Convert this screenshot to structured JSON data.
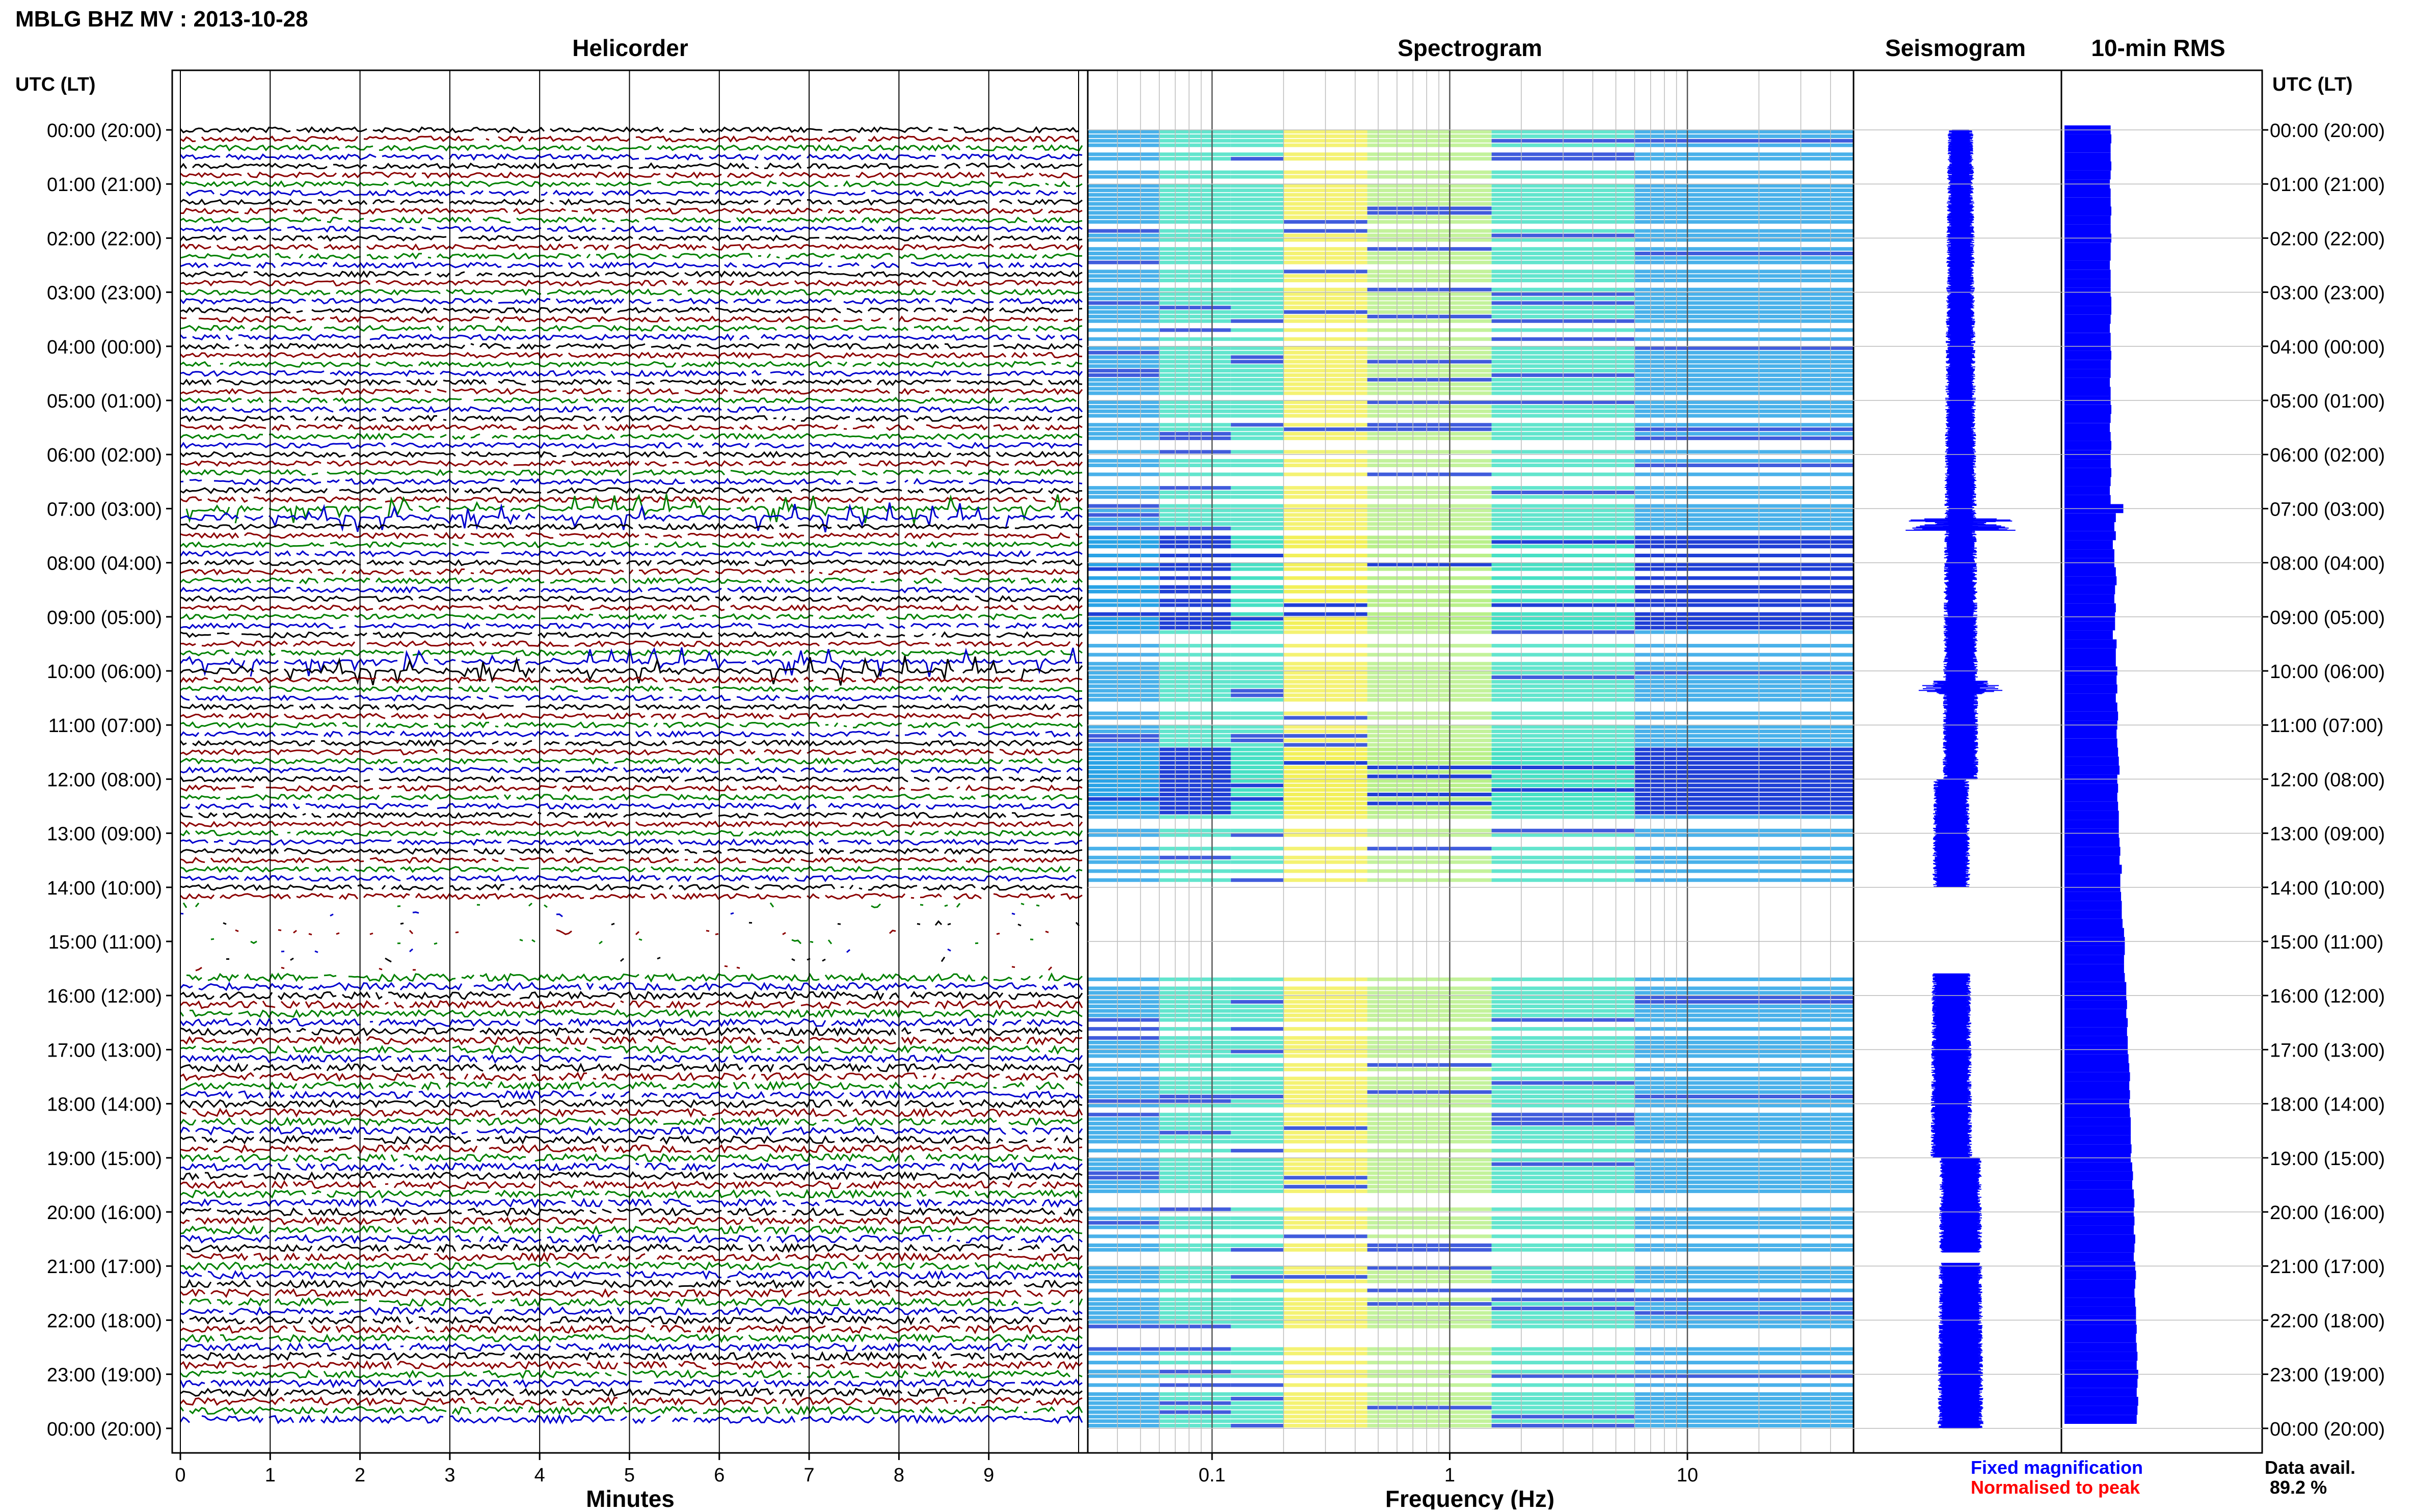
{
  "header": {
    "title": "MBLG BHZ MV : 2013-10-28"
  },
  "panels": {
    "helicorder": "Helicorder",
    "spectrogram": "Spectrogram",
    "seismogram": "Seismogram",
    "rms": "10-min RMS"
  },
  "time_axis_label": "UTC (LT)",
  "time_labels": [
    "00:00 (20:00)",
    "01:00 (21:00)",
    "02:00 (22:00)",
    "03:00 (23:00)",
    "04:00 (00:00)",
    "05:00 (01:00)",
    "06:00 (02:00)",
    "07:00 (03:00)",
    "08:00 (04:00)",
    "09:00 (05:00)",
    "10:00 (06:00)",
    "11:00 (07:00)",
    "12:00 (08:00)",
    "13:00 (09:00)",
    "14:00 (10:00)",
    "15:00 (11:00)",
    "16:00 (12:00)",
    "17:00 (13:00)",
    "18:00 (14:00)",
    "19:00 (15:00)",
    "20:00 (16:00)",
    "21:00 (17:00)",
    "22:00 (18:00)",
    "23:00 (19:00)",
    "00:00 (20:00)"
  ],
  "helicorder_axis": {
    "ticks": [
      "0",
      "1",
      "2",
      "3",
      "4",
      "5",
      "6",
      "7",
      "8",
      "9"
    ],
    "label": "Minutes"
  },
  "spectrogram_axis": {
    "ticks": [
      "0.1",
      "1",
      "10"
    ],
    "label": "Frequency (Hz)"
  },
  "legend": {
    "fixed": "Fixed magnification",
    "normalised": "Normalised to peak",
    "fixed_color": "#0000ff",
    "normalised_color": "#ff0000"
  },
  "data_availability": {
    "label": "Data avail.",
    "value": "89.2 %"
  },
  "trace_colors": [
    "#000000",
    "#8b0000",
    "#008000",
    "#0000cd"
  ],
  "spectrogram_colors": [
    "#1f3fd6",
    "#29a3e6",
    "#47e0c4",
    "#b9f08a",
    "#f2f05a"
  ],
  "chart_data": {
    "type": "heatmap",
    "title": "MBLG BHZ MV : 2013-10-28",
    "panels": [
      "Helicorder",
      "Spectrogram",
      "Seismogram",
      "10-min RMS"
    ],
    "time_range_utc": [
      "00:00",
      "24:00"
    ],
    "helicorder_xlim_minutes": [
      0,
      10
    ],
    "spectrogram_freq_range_hz": [
      0.03,
      50
    ],
    "spectrogram_scale": "log",
    "rms_interval_minutes": 10,
    "rms_relative": [
      0.55,
      0.56,
      0.55,
      0.55,
      0.56,
      0.55,
      0.54,
      0.55,
      0.55,
      0.56,
      0.55,
      0.55,
      0.56,
      0.55,
      0.55,
      0.54,
      0.55,
      0.55,
      0.55,
      0.56,
      0.56,
      0.55,
      0.54,
      0.55,
      0.55,
      0.56,
      0.55,
      0.55,
      0.54,
      0.55,
      0.55,
      0.56,
      0.55,
      0.54,
      0.55,
      0.56,
      0.55,
      0.55,
      0.56,
      0.55,
      0.54,
      0.55,
      0.72,
      0.62,
      0.6,
      0.62,
      0.58,
      0.6,
      0.6,
      0.62,
      0.63,
      0.61,
      0.6,
      0.62,
      0.61,
      0.61,
      0.58,
      0.63,
      0.62,
      0.62,
      0.64,
      0.63,
      0.64,
      0.62,
      0.64,
      0.65,
      0.64,
      0.63,
      0.64,
      0.65,
      0.66,
      0.67,
      0.64,
      0.65,
      0.64,
      0.65,
      0.66,
      0.66,
      0.66,
      0.67,
      0.68,
      0.67,
      0.7,
      0.68,
      0.68,
      0.69,
      0.7,
      0.7,
      0.71,
      0.73,
      0.74,
      0.74,
      0.73,
      0.73,
      0.74,
      0.76,
      0.76,
      0.77,
      0.76,
      0.78,
      0.77,
      0.78,
      0.78,
      0.79,
      0.8,
      0.81,
      0.8,
      0.81,
      0.8,
      0.81,
      0.82,
      0.82,
      0.82,
      0.83,
      0.82,
      0.84,
      0.85,
      0.84,
      0.86,
      0.87,
      0.86,
      0.87,
      0.86,
      0.88,
      0.87,
      0.86,
      0.88,
      0.89,
      0.88,
      0.87,
      0.88,
      0.89,
      0.89,
      0.9,
      0.89,
      0.9,
      0.91,
      0.9,
      0.92,
      0.91,
      0.9,
      0.92,
      0.91,
      0.9
    ],
    "data_availability_percent": 89.2
  }
}
